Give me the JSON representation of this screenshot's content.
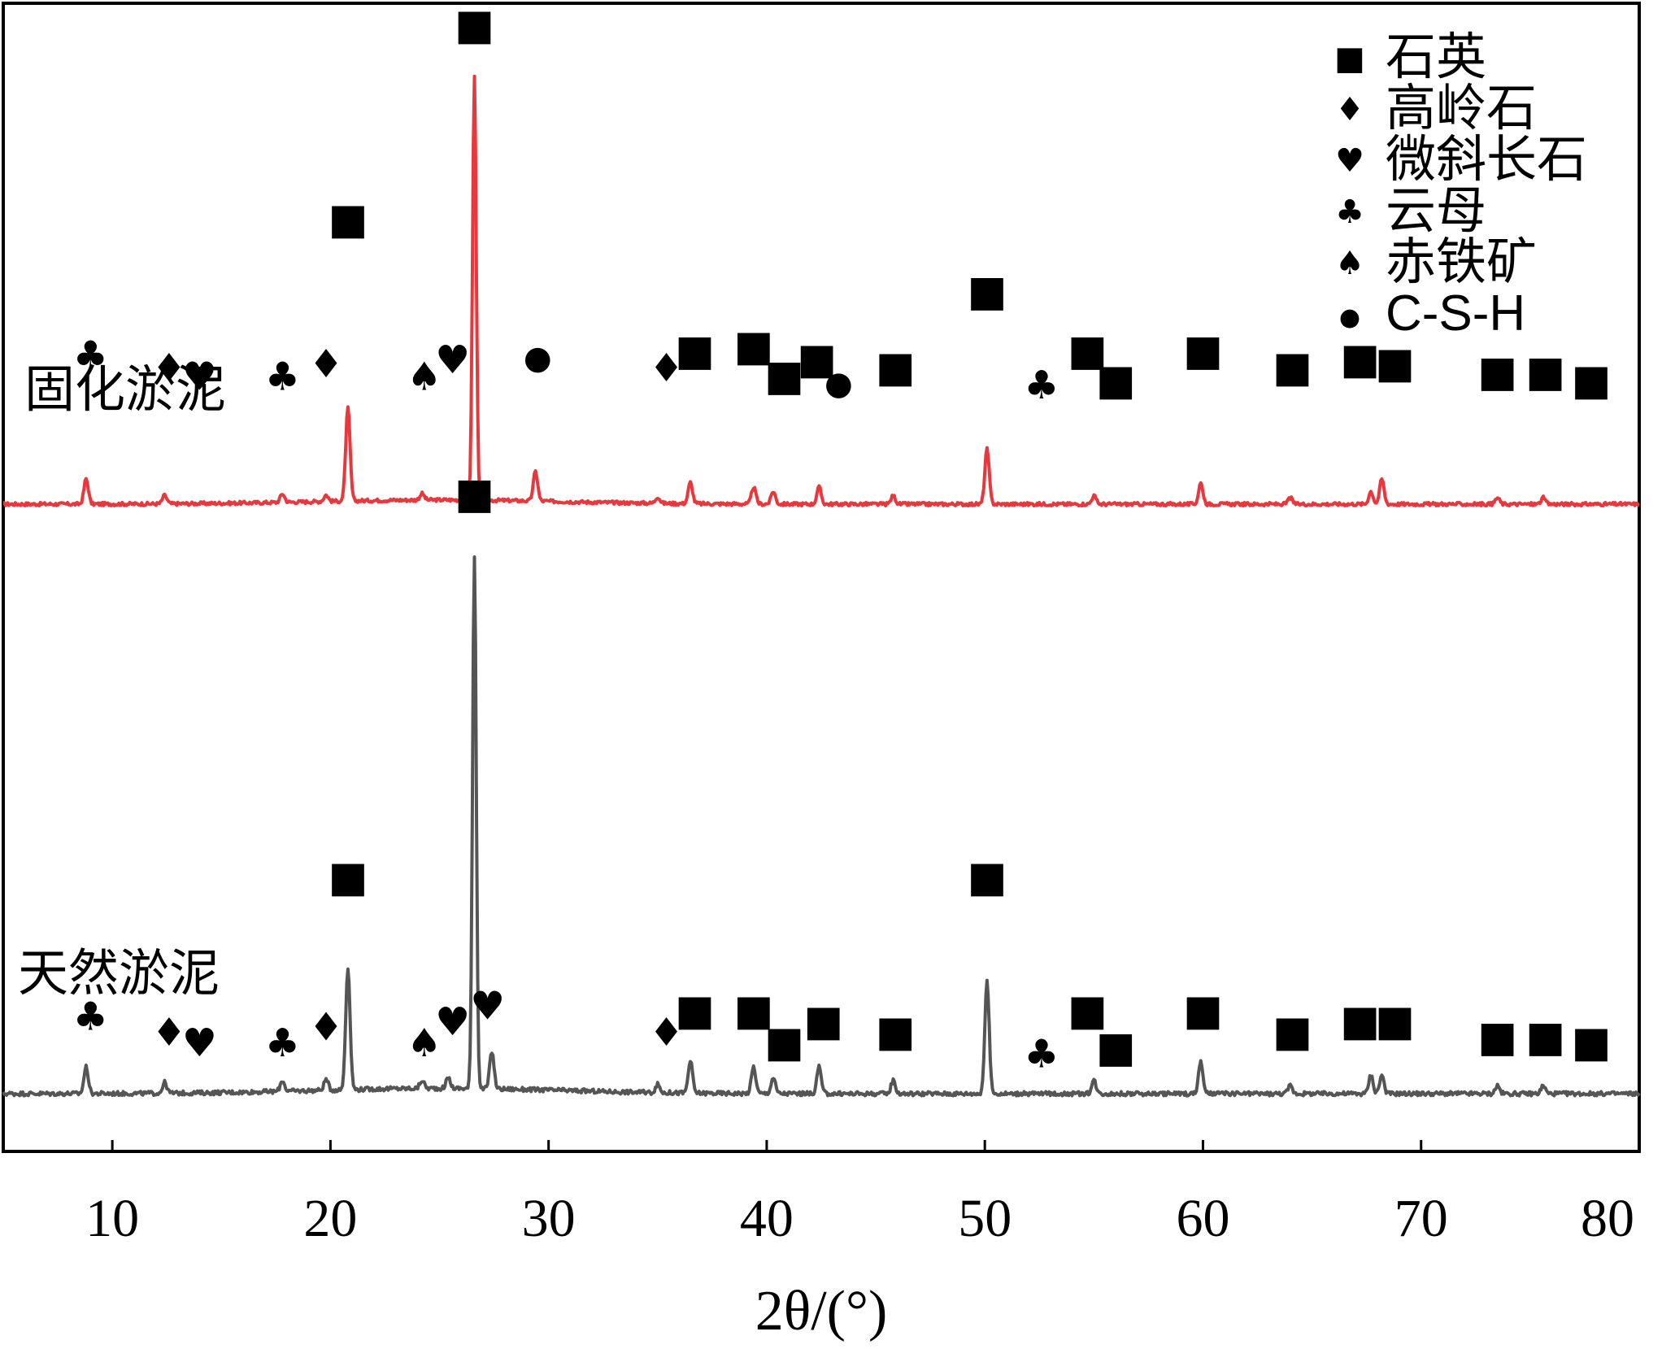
{
  "chart_data": {
    "type": "line",
    "xlabel": "2θ/(°)",
    "xlim": [
      5,
      80
    ],
    "x_ticks": [
      "10",
      "20",
      "30",
      "40",
      "50",
      "60",
      "70",
      "80"
    ],
    "x_tick_values": [
      10,
      20,
      30,
      40,
      50,
      60,
      70,
      80
    ],
    "legend_position": "top-right",
    "phases": [
      {
        "key": "quartz",
        "label": "石英",
        "symbol": "■"
      },
      {
        "key": "kaolinite",
        "label": "高岭石",
        "symbol": "♦"
      },
      {
        "key": "microcline",
        "label": "微斜长石",
        "symbol": "♥"
      },
      {
        "key": "mica",
        "label": "云母",
        "symbol": "♣"
      },
      {
        "key": "hematite",
        "label": "赤铁矿",
        "symbol": "♠"
      },
      {
        "key": "csh",
        "label": "C-S-H",
        "symbol": "●"
      }
    ],
    "series": [
      {
        "name": "固化淤泥",
        "color": "#e8383d",
        "baseline": 0.17,
        "peaks": [
          {
            "x": 8.8,
            "h": 0.06
          },
          {
            "x": 12.4,
            "h": 0.02
          },
          {
            "x": 17.8,
            "h": 0.02
          },
          {
            "x": 19.8,
            "h": 0.015
          },
          {
            "x": 20.8,
            "h": 0.22
          },
          {
            "x": 24.2,
            "h": 0.015
          },
          {
            "x": 26.6,
            "h": 1.0
          },
          {
            "x": 29.4,
            "h": 0.07
          },
          {
            "x": 35.0,
            "h": 0.015
          },
          {
            "x": 36.5,
            "h": 0.05
          },
          {
            "x": 39.4,
            "h": 0.04
          },
          {
            "x": 40.3,
            "h": 0.03
          },
          {
            "x": 42.4,
            "h": 0.04
          },
          {
            "x": 45.8,
            "h": 0.02
          },
          {
            "x": 50.1,
            "h": 0.13
          },
          {
            "x": 55.0,
            "h": 0.02
          },
          {
            "x": 59.9,
            "h": 0.05
          },
          {
            "x": 64.0,
            "h": 0.015
          },
          {
            "x": 67.7,
            "h": 0.03
          },
          {
            "x": 68.2,
            "h": 0.06
          },
          {
            "x": 73.5,
            "h": 0.015
          },
          {
            "x": 75.6,
            "h": 0.015
          }
        ],
        "markers": [
          {
            "x": 9.0,
            "y": 0.32,
            "symbol": "♣"
          },
          {
            "x": 12.6,
            "y": 0.29,
            "symbol": "♦"
          },
          {
            "x": 14.0,
            "y": 0.27,
            "symbol": "♥"
          },
          {
            "x": 17.8,
            "y": 0.27,
            "symbol": "♣"
          },
          {
            "x": 19.8,
            "y": 0.3,
            "symbol": "♦"
          },
          {
            "x": 20.8,
            "y": 0.64,
            "symbol": "■"
          },
          {
            "x": 24.3,
            "y": 0.27,
            "symbol": "♠"
          },
          {
            "x": 25.6,
            "y": 0.31,
            "symbol": "♥"
          },
          {
            "x": 26.6,
            "y": 1.1,
            "symbol": "■"
          },
          {
            "x": 29.5,
            "y": 0.32,
            "symbol": "●"
          },
          {
            "x": 35.4,
            "y": 0.29,
            "symbol": "♦"
          },
          {
            "x": 36.7,
            "y": 0.33,
            "symbol": "■"
          },
          {
            "x": 39.4,
            "y": 0.34,
            "symbol": "■"
          },
          {
            "x": 40.8,
            "y": 0.27,
            "symbol": "■"
          },
          {
            "x": 42.3,
            "y": 0.31,
            "symbol": "■"
          },
          {
            "x": 43.3,
            "y": 0.26,
            "symbol": "●"
          },
          {
            "x": 45.9,
            "y": 0.29,
            "symbol": "■"
          },
          {
            "x": 50.1,
            "y": 0.47,
            "symbol": "■"
          },
          {
            "x": 52.6,
            "y": 0.25,
            "symbol": "♣"
          },
          {
            "x": 54.7,
            "y": 0.33,
            "symbol": "■"
          },
          {
            "x": 56.0,
            "y": 0.26,
            "symbol": "■"
          },
          {
            "x": 60.0,
            "y": 0.33,
            "symbol": "■"
          },
          {
            "x": 64.1,
            "y": 0.29,
            "symbol": "■"
          },
          {
            "x": 67.2,
            "y": 0.31,
            "symbol": "■"
          },
          {
            "x": 68.8,
            "y": 0.3,
            "symbol": "■"
          },
          {
            "x": 73.5,
            "y": 0.28,
            "symbol": "■"
          },
          {
            "x": 75.7,
            "y": 0.28,
            "symbol": "■"
          },
          {
            "x": 77.8,
            "y": 0.26,
            "symbol": "■"
          }
        ]
      },
      {
        "name": "天然淤泥",
        "color": "#555555",
        "baseline": 0.05,
        "peaks": [
          {
            "x": 8.8,
            "h": 0.05
          },
          {
            "x": 12.4,
            "h": 0.02
          },
          {
            "x": 17.8,
            "h": 0.02
          },
          {
            "x": 19.8,
            "h": 0.02
          },
          {
            "x": 20.8,
            "h": 0.23
          },
          {
            "x": 24.2,
            "h": 0.015
          },
          {
            "x": 25.4,
            "h": 0.02
          },
          {
            "x": 26.6,
            "h": 1.0
          },
          {
            "x": 27.4,
            "h": 0.07
          },
          {
            "x": 35.0,
            "h": 0.015
          },
          {
            "x": 36.5,
            "h": 0.06
          },
          {
            "x": 39.4,
            "h": 0.05
          },
          {
            "x": 40.3,
            "h": 0.03
          },
          {
            "x": 42.4,
            "h": 0.05
          },
          {
            "x": 45.8,
            "h": 0.025
          },
          {
            "x": 50.1,
            "h": 0.21
          },
          {
            "x": 55.0,
            "h": 0.025
          },
          {
            "x": 59.9,
            "h": 0.06
          },
          {
            "x": 64.0,
            "h": 0.015
          },
          {
            "x": 67.7,
            "h": 0.035
          },
          {
            "x": 68.2,
            "h": 0.035
          },
          {
            "x": 73.5,
            "h": 0.015
          },
          {
            "x": 75.6,
            "h": 0.015
          }
        ],
        "markers": [
          {
            "x": 9.0,
            "y": 0.12,
            "symbol": "♣"
          },
          {
            "x": 12.6,
            "y": 0.09,
            "symbol": "♦"
          },
          {
            "x": 14.0,
            "y": 0.07,
            "symbol": "♥"
          },
          {
            "x": 17.8,
            "y": 0.07,
            "symbol": "♣"
          },
          {
            "x": 19.8,
            "y": 0.1,
            "symbol": "♦"
          },
          {
            "x": 20.8,
            "y": 0.38,
            "symbol": "■"
          },
          {
            "x": 24.3,
            "y": 0.07,
            "symbol": "♠"
          },
          {
            "x": 25.6,
            "y": 0.11,
            "symbol": "♥"
          },
          {
            "x": 26.6,
            "y": 1.1,
            "symbol": "■"
          },
          {
            "x": 27.2,
            "y": 0.14,
            "symbol": "♥"
          },
          {
            "x": 35.4,
            "y": 0.09,
            "symbol": "♦"
          },
          {
            "x": 36.7,
            "y": 0.13,
            "symbol": "■"
          },
          {
            "x": 39.4,
            "y": 0.13,
            "symbol": "■"
          },
          {
            "x": 40.8,
            "y": 0.07,
            "symbol": "■"
          },
          {
            "x": 42.6,
            "y": 0.11,
            "symbol": "■"
          },
          {
            "x": 45.9,
            "y": 0.09,
            "symbol": "■"
          },
          {
            "x": 50.1,
            "y": 0.38,
            "symbol": "■"
          },
          {
            "x": 52.6,
            "y": 0.05,
            "symbol": "♣"
          },
          {
            "x": 54.7,
            "y": 0.13,
            "symbol": "■"
          },
          {
            "x": 56.0,
            "y": 0.06,
            "symbol": "■"
          },
          {
            "x": 60.0,
            "y": 0.13,
            "symbol": "■"
          },
          {
            "x": 64.1,
            "y": 0.09,
            "symbol": "■"
          },
          {
            "x": 67.2,
            "y": 0.11,
            "symbol": "■"
          },
          {
            "x": 68.8,
            "y": 0.11,
            "symbol": "■"
          },
          {
            "x": 73.5,
            "y": 0.08,
            "symbol": "■"
          },
          {
            "x": 75.7,
            "y": 0.08,
            "symbol": "■"
          },
          {
            "x": 77.8,
            "y": 0.07,
            "symbol": "■"
          }
        ]
      }
    ]
  }
}
